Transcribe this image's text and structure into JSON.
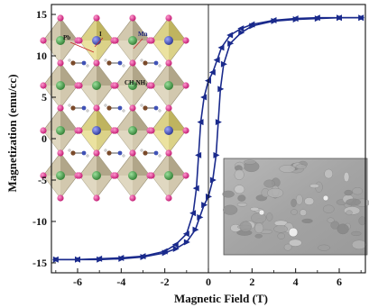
{
  "chart_data": {
    "type": "line",
    "xlabel": "Magnetic Field (T)",
    "ylabel": "Magnetization (emu/cc)",
    "xlim": [
      -7.2,
      7.2
    ],
    "ylim": [
      -16.2,
      16.2
    ],
    "x_ticks": [
      -6,
      -4,
      -2,
      0,
      2,
      4,
      6
    ],
    "y_ticks": [
      -15,
      -10,
      -5,
      0,
      5,
      10,
      15
    ],
    "grid": false,
    "series": [
      {
        "branch": "descending",
        "x": [
          7.0,
          6.0,
          5.0,
          4.0,
          3.0,
          2.0,
          1.5,
          1.0,
          0.6,
          0.4,
          0.2,
          0.0,
          -0.2,
          -0.35,
          -0.45,
          -0.55,
          -0.7,
          -1.0,
          -1.5,
          -2.0,
          -3.0,
          -4.0,
          -5.0,
          -6.0,
          -7.0
        ],
        "y": [
          14.6,
          14.6,
          14.6,
          14.5,
          14.3,
          13.8,
          13.3,
          12.5,
          11.0,
          9.5,
          8.0,
          7.0,
          5.0,
          2.0,
          -2.0,
          -6.0,
          -9.0,
          -11.5,
          -12.8,
          -13.6,
          -14.2,
          -14.4,
          -14.5,
          -14.6,
          -14.6
        ],
        "color": "#1a2a8c"
      },
      {
        "branch": "ascending",
        "x": [
          -7.0,
          -6.0,
          -5.0,
          -4.0,
          -3.0,
          -2.0,
          -1.5,
          -1.0,
          -0.6,
          -0.4,
          -0.2,
          0.0,
          0.2,
          0.35,
          0.45,
          0.55,
          0.7,
          1.0,
          1.5,
          2.0,
          3.0,
          4.0,
          5.0,
          6.0,
          7.0
        ],
        "y": [
          -14.6,
          -14.6,
          -14.6,
          -14.5,
          -14.3,
          -13.8,
          -13.3,
          -12.5,
          -11.0,
          -9.5,
          -8.0,
          -7.0,
          -5.0,
          -2.0,
          2.0,
          6.0,
          9.0,
          11.5,
          12.8,
          13.6,
          14.2,
          14.4,
          14.5,
          14.6,
          14.6
        ],
        "color": "#1a2a8c"
      }
    ],
    "annotations": [
      "Pb",
      "I",
      "Mn",
      "CH3NH3"
    ]
  },
  "insets": {
    "crystal_structure": {
      "labels": {
        "pb": "Pb",
        "i": "I",
        "mn": "Mn",
        "ma": "CH₃NH₃"
      }
    },
    "sem_micrograph": {}
  }
}
